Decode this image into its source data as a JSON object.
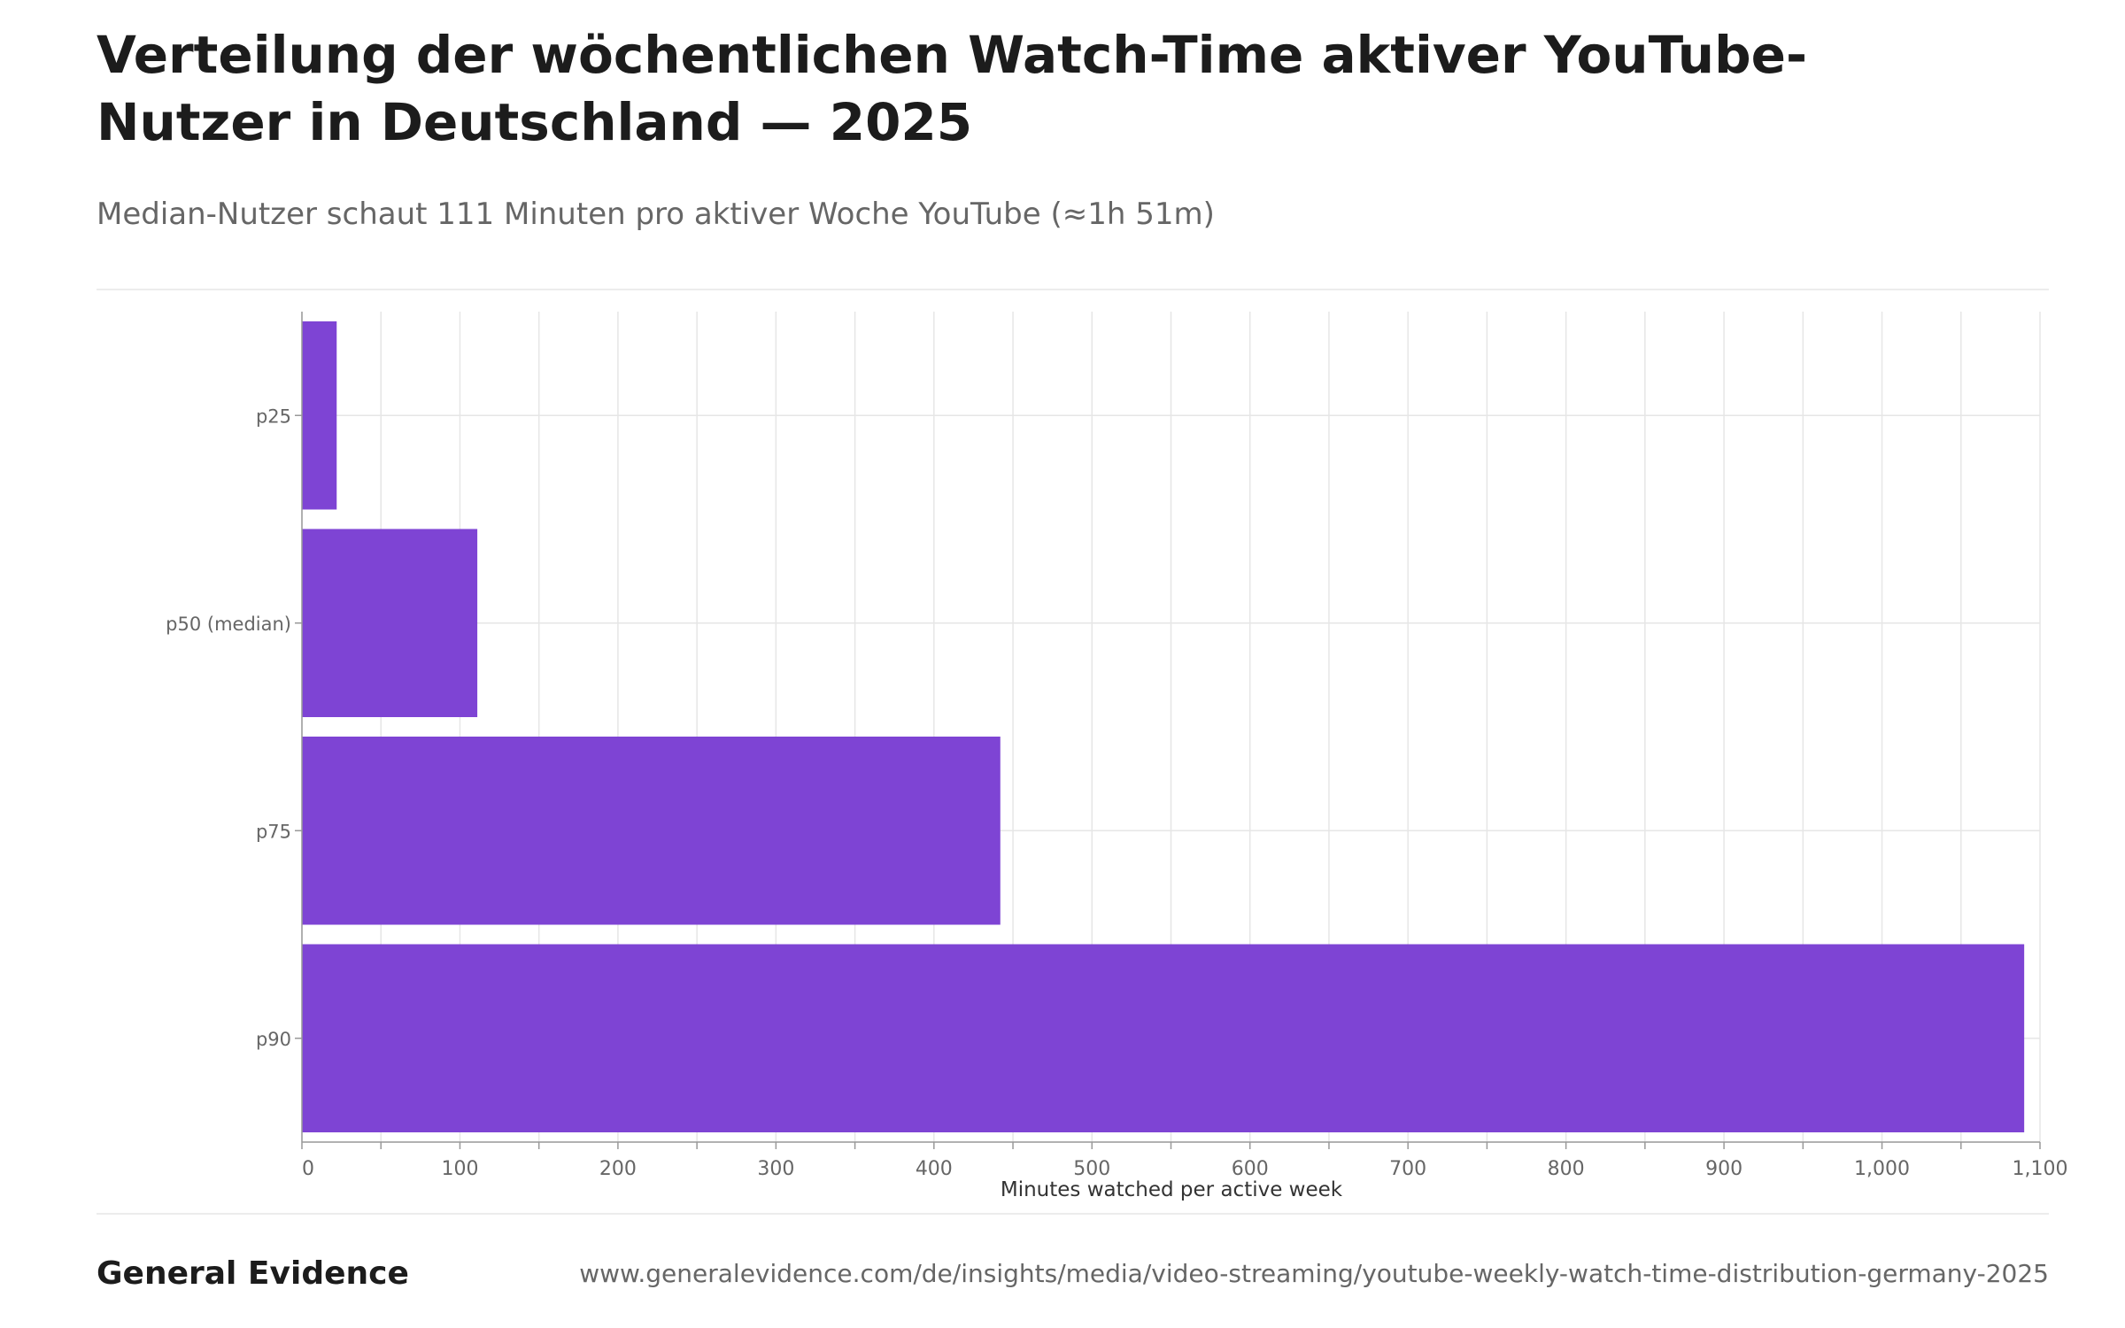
{
  "header": {
    "title": "Verteilung der wöchentlichen Watch-Time aktiver YouTube-Nutzer in Deutschland — 2025",
    "subtitle": "Median-Nutzer schaut 111 Minuten pro aktiver Woche YouTube (≈1h 51m)"
  },
  "footer": {
    "brand": "General Evidence",
    "url": "www.generalevidence.com/de/insights/media/video-streaming/youtube-weekly-watch-time-distribution-germany-2025"
  },
  "colors": {
    "bar": "#7e44d4",
    "grid": "#e6e6e6",
    "axis": "#999999",
    "tick_text": "#666666"
  },
  "chart_data": {
    "type": "bar",
    "orientation": "horizontal",
    "title": "",
    "xlabel": "Minutes watched per active week",
    "ylabel": "",
    "categories": [
      "p25",
      "p50 (median)",
      "p75",
      "p90"
    ],
    "values": [
      22,
      111,
      442,
      1090
    ],
    "xlim": [
      0,
      1100
    ],
    "xticks": [
      0,
      100,
      200,
      300,
      400,
      500,
      600,
      700,
      800,
      900,
      1000,
      1100
    ],
    "xtick_labels": [
      "0",
      "100",
      "200",
      "300",
      "400",
      "500",
      "600",
      "700",
      "800",
      "900",
      "1,000",
      "1,100"
    ],
    "grid": true,
    "legend": "none"
  }
}
